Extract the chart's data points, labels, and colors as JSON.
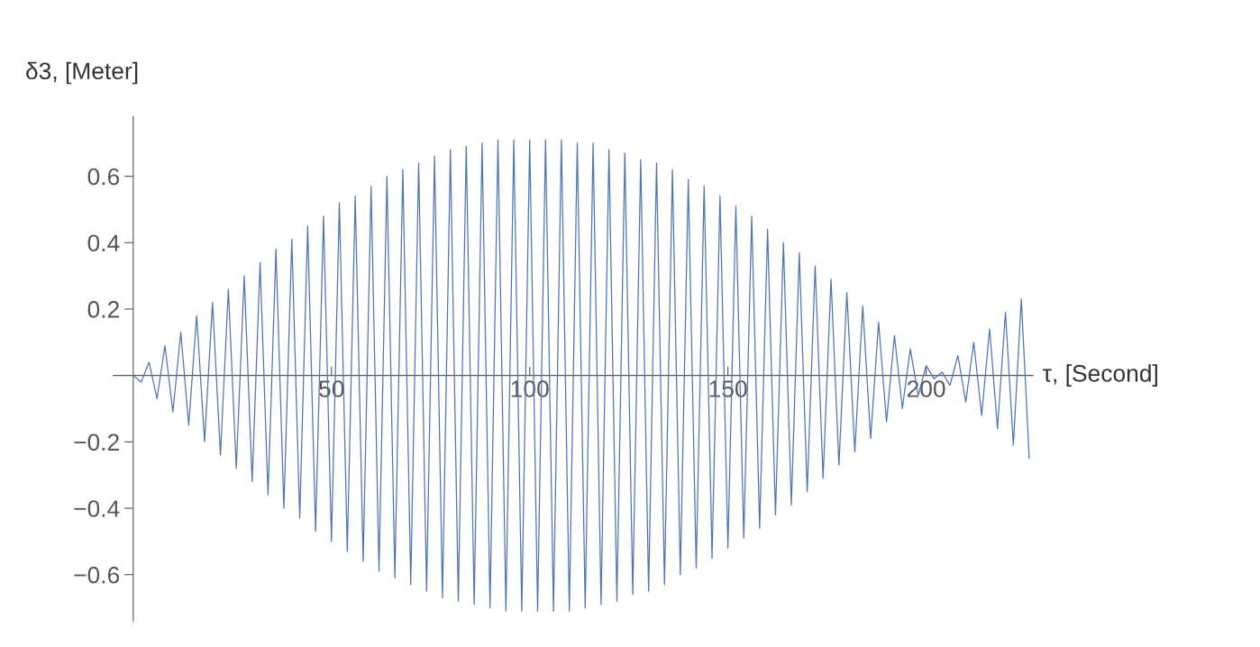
{
  "chart_data": {
    "type": "line",
    "xlabel": "τ, [Second]",
    "ylabel": "δ3, [Meter]",
    "xlim": [
      -5,
      227
    ],
    "ylim": [
      -0.74,
      0.78
    ],
    "xticks": [
      50,
      100,
      150,
      200
    ],
    "yticks": [
      {
        "value": -0.6,
        "label": "−0.6"
      },
      {
        "value": -0.4,
        "label": "−0.4"
      },
      {
        "value": -0.2,
        "label": "−0.2"
      },
      0.2,
      0.4,
      0.6
    ],
    "series": [
      {
        "color": "#4e75b3",
        "x": [
          0,
          2,
          4,
          6,
          8,
          10,
          12,
          14,
          16,
          18,
          20,
          22,
          24,
          26,
          28,
          30,
          32,
          34,
          36,
          38,
          40,
          42,
          44,
          46,
          48,
          50,
          52,
          54,
          56,
          58,
          60,
          62,
          64,
          66,
          68,
          70,
          72,
          74,
          76,
          78,
          80,
          82,
          84,
          86,
          88,
          90,
          92,
          94,
          96,
          98,
          100,
          102,
          104,
          106,
          108,
          110,
          112,
          114,
          116,
          118,
          120,
          122,
          124,
          126,
          128,
          130,
          132,
          134,
          136,
          138,
          140,
          142,
          144,
          146,
          148,
          150,
          152,
          154,
          156,
          158,
          160,
          162,
          164,
          166,
          168,
          170,
          172,
          174,
          176,
          178,
          180,
          182,
          184,
          186,
          188,
          190,
          192,
          194,
          196,
          198,
          200,
          202,
          204,
          206,
          208,
          210,
          212,
          214,
          216,
          218,
          220,
          222,
          224,
          226
        ],
        "values": [
          0,
          -0.02,
          0.04,
          -0.07,
          0.09,
          -0.11,
          0.13,
          -0.15,
          0.18,
          -0.2,
          0.22,
          -0.24,
          0.26,
          -0.28,
          0.3,
          -0.32,
          0.34,
          -0.36,
          0.38,
          -0.4,
          0.41,
          -0.43,
          0.45,
          -0.47,
          0.48,
          -0.5,
          0.52,
          -0.53,
          0.54,
          -0.56,
          0.57,
          -0.59,
          0.6,
          -0.61,
          0.62,
          -0.63,
          0.64,
          -0.65,
          0.66,
          -0.67,
          0.68,
          -0.68,
          0.69,
          -0.69,
          0.7,
          -0.7,
          0.71,
          -0.71,
          0.71,
          -0.71,
          0.71,
          -0.71,
          0.71,
          -0.71,
          0.71,
          -0.71,
          0.7,
          -0.7,
          0.7,
          -0.69,
          0.68,
          -0.68,
          0.67,
          -0.66,
          0.65,
          -0.65,
          0.64,
          -0.63,
          0.62,
          -0.6,
          0.59,
          -0.58,
          0.57,
          -0.55,
          0.54,
          -0.52,
          0.51,
          -0.49,
          0.48,
          -0.46,
          0.44,
          -0.42,
          0.4,
          -0.39,
          0.37,
          -0.35,
          0.33,
          -0.31,
          0.29,
          -0.27,
          0.25,
          -0.23,
          0.21,
          -0.19,
          0.16,
          -0.14,
          0.12,
          -0.1,
          0.08,
          -0.06,
          0.03,
          -0.01,
          0.01,
          -0.03,
          0.06,
          -0.08,
          0.1,
          -0.12,
          0.14,
          -0.16,
          0.19,
          -0.21,
          0.23,
          -0.25
        ]
      }
    ]
  }
}
